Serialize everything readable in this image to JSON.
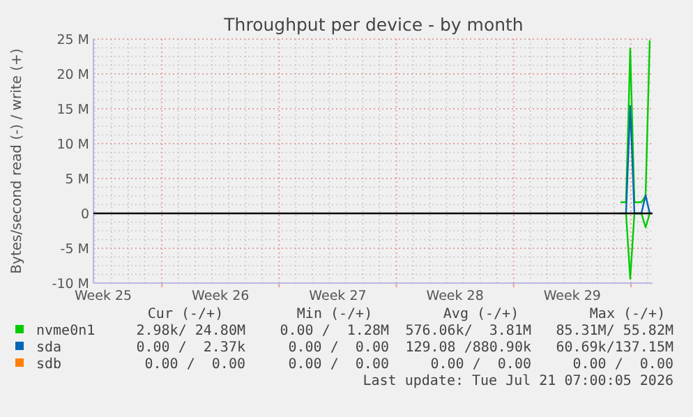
{
  "chart_data": {
    "type": "line",
    "title": "Throughput per device - by month",
    "ylabel": "Bytes/second read (-) / write (+)",
    "xlim": [
      "2026-06-17T22:00",
      "2026-07-21T07:00"
    ],
    "xticks": [
      {
        "value": "2026-06-18T12:00",
        "label": "Week 25"
      },
      {
        "value": "2026-06-22T00:00",
        "label": null
      },
      {
        "value": "2026-06-25T12:00",
        "label": "Week 26"
      },
      {
        "value": "2026-06-29T00:00",
        "label": null
      },
      {
        "value": "2026-07-02T12:00",
        "label": "Week 27"
      },
      {
        "value": "2026-07-06T00:00",
        "label": null
      },
      {
        "value": "2026-07-09T12:00",
        "label": "Week 28"
      },
      {
        "value": "2026-07-13T00:00",
        "label": null
      },
      {
        "value": "2026-07-16T12:00",
        "label": "Week 29"
      },
      {
        "value": "2026-07-20T00:00",
        "label": null
      }
    ],
    "ylim": [
      -10,
      25
    ],
    "yticks": [
      {
        "value": -10,
        "label": "-10 M"
      },
      {
        "value": -5,
        "label": "-5 M"
      },
      0,
      {
        "value": 5,
        "label": "5 M"
      },
      {
        "value": 10,
        "label": "10 M"
      },
      {
        "value": 15,
        "label": "15 M"
      },
      {
        "value": 20,
        "label": "20 M"
      },
      {
        "value": 25,
        "label": "25 M"
      }
    ],
    "grid": true,
    "legend": "bottom",
    "ref_lines": [
      {
        "axis": "y",
        "value": 0,
        "color": "#000000"
      }
    ],
    "series": [
      {
        "name": "nvme0n1",
        "color": "#00cc00",
        "x": [
          "2026-07-19T09:00",
          "2026-07-19T17:00",
          "2026-07-19T23:00",
          "2026-07-20T05:00",
          "2026-07-20T15:00",
          "2026-07-20T21:00",
          "2026-07-21T03:00"
        ],
        "values": [
          1.6,
          1.6,
          23.6,
          1.6,
          1.6,
          2.5,
          24.8
        ]
      },
      {
        "color": "#00cc00",
        "x": [
          "2026-07-19T09:00",
          "2026-07-19T17:00",
          "2026-07-19T23:00",
          "2026-07-20T05:00",
          "2026-07-20T15:00",
          "2026-07-20T21:00",
          "2026-07-21T03:00"
        ],
        "values": [
          0,
          0,
          -9.4,
          0,
          0,
          -2,
          0
        ]
      },
      {
        "name": "sda",
        "color": "#0066b3",
        "x": [
          "2026-07-19T17:00",
          "2026-07-19T23:00",
          "2026-07-20T05:00",
          "2026-07-20T15:00",
          "2026-07-20T21:00",
          "2026-07-21T03:00"
        ],
        "values": [
          0,
          15.4,
          0,
          0,
          2.6,
          0
        ]
      },
      {
        "name": "sdb",
        "color": "#ff8000"
      }
    ],
    "annotations": [
      "Cur (-/+)",
      "Min (-/+)",
      "Avg (-/+)",
      "Max (-/+)",
      "2.98k/ 24.80M",
      "0.00 /  1.28M",
      "576.06k/  3.81M",
      "85.31M/ 55.82M",
      "0.00 /  2.37k",
      "0.00 /  0.00",
      "129.08 /880.90k",
      "60.69k/137.15M",
      "0.00 /  0.00",
      "0.00 /  0.00",
      "0.00 /  0.00",
      "0.00 /  0.00",
      "Last update: Tue Jul 21 07:00:05 2026"
    ]
  }
}
